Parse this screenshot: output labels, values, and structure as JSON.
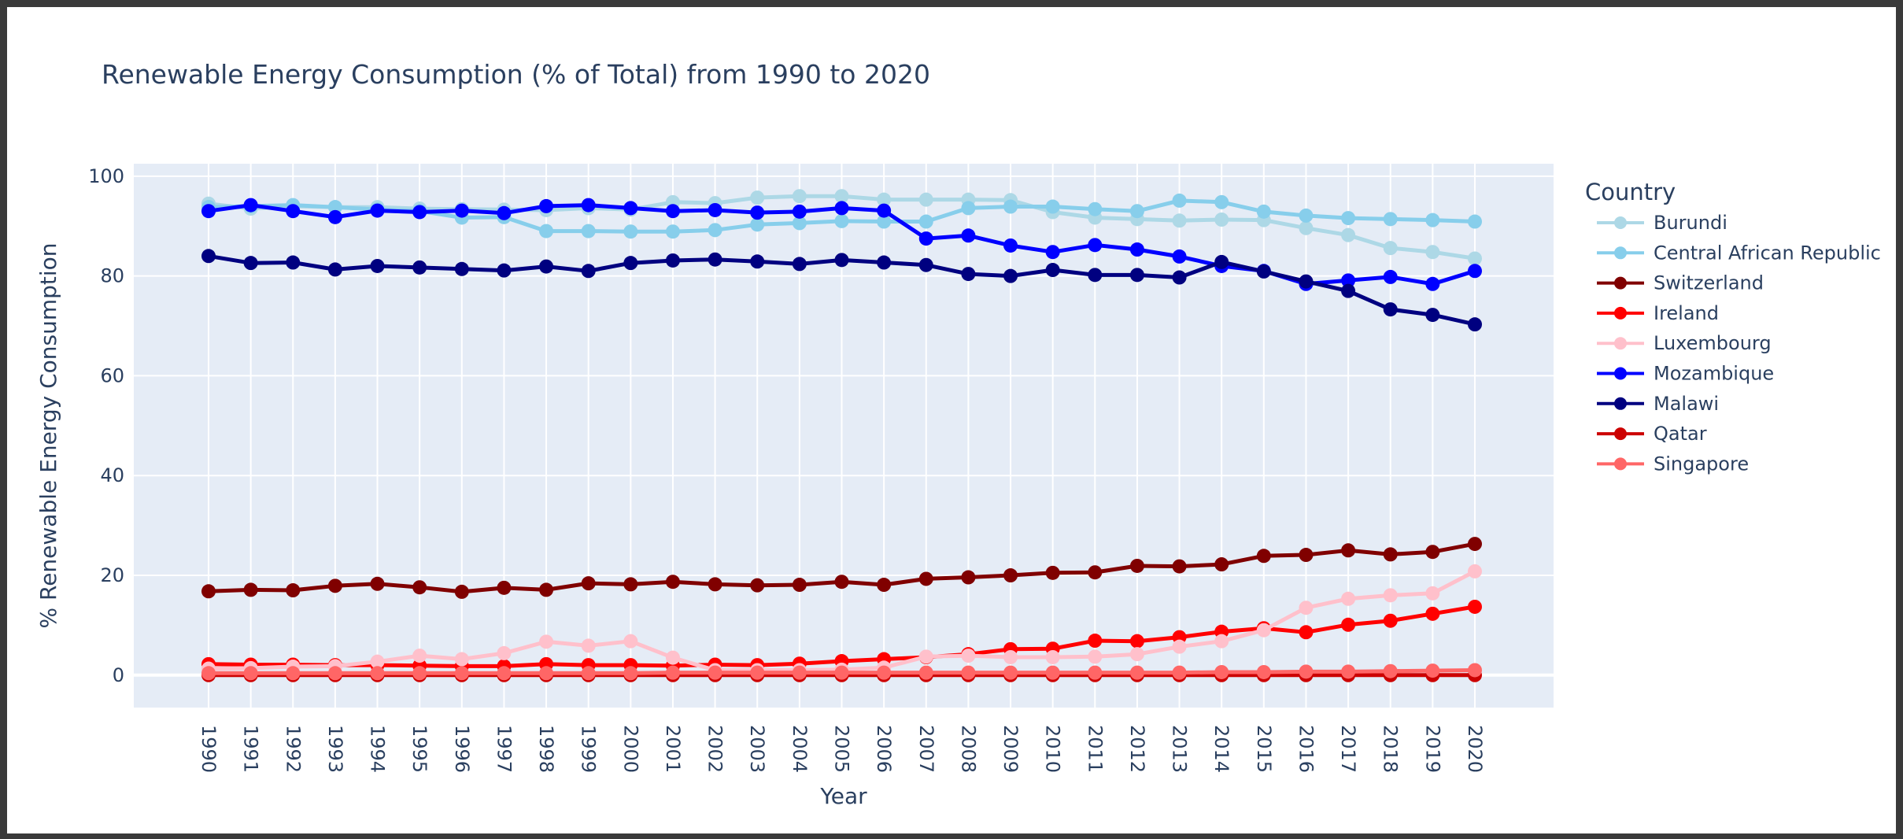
{
  "chart_data": {
    "type": "line",
    "title": "Renewable Energy Consumption (% of Total) from 1990 to 2020",
    "xlabel": "Year",
    "ylabel": "% Renewable Energy Consumption",
    "x": [
      1990,
      1991,
      1992,
      1993,
      1994,
      1995,
      1996,
      1997,
      1998,
      1999,
      2000,
      2001,
      2002,
      2003,
      2004,
      2005,
      2006,
      2007,
      2008,
      2009,
      2010,
      2011,
      2012,
      2013,
      2014,
      2015,
      2016,
      2017,
      2018,
      2019,
      2020
    ],
    "xtick_labels": [
      "1990",
      "1991",
      "1992",
      "1993",
      "1994",
      "1995",
      "1996",
      "1997",
      "1998",
      "1999",
      "2000",
      "2001",
      "2002",
      "2003",
      "2004",
      "2005",
      "2006",
      "2007",
      "2008",
      "2009",
      "2010",
      "2011",
      "2012",
      "2013",
      "2014",
      "2015",
      "2016",
      "2017",
      "2018",
      "2019",
      "2020"
    ],
    "ylim": [
      -6.5,
      102.5
    ],
    "yticks": [
      0,
      20,
      40,
      60,
      80,
      100
    ],
    "ytick_labels": [
      "0",
      "20",
      "40",
      "60",
      "80",
      "100"
    ],
    "grid": true,
    "legend": {
      "title": "Country",
      "placement": "right"
    },
    "series": [
      {
        "name": "Burundi",
        "color": "#ADD8E6",
        "values": [
          94.5,
          93.5,
          94.0,
          93.8,
          93.8,
          93.5,
          93.4,
          93.3,
          93.2,
          93.6,
          93.3,
          94.8,
          94.6,
          95.7,
          96.0,
          96.0,
          95.3,
          95.3,
          95.3,
          95.2,
          92.8,
          91.7,
          91.4,
          91.1,
          91.3,
          91.2,
          89.6,
          88.2,
          85.6,
          84.8,
          83.5
        ]
      },
      {
        "name": "Central African Republic",
        "color": "#87CEEB",
        "values": [
          93.8,
          94.0,
          94.2,
          93.8,
          93.3,
          93.0,
          91.7,
          91.8,
          89.0,
          89.0,
          88.9,
          88.9,
          89.2,
          90.3,
          90.6,
          91.0,
          90.9,
          90.9,
          93.6,
          93.9,
          93.9,
          93.4,
          93.0,
          95.1,
          94.8,
          92.9,
          92.1,
          91.6,
          91.4,
          91.2,
          90.9
        ]
      },
      {
        "name": "Switzerland",
        "color": "#800000",
        "values": [
          16.8,
          17.1,
          17.0,
          17.9,
          18.3,
          17.6,
          16.7,
          17.5,
          17.1,
          18.4,
          18.2,
          18.7,
          18.2,
          18.0,
          18.1,
          18.7,
          18.1,
          19.3,
          19.6,
          20.0,
          20.5,
          20.6,
          21.9,
          21.8,
          22.2,
          23.9,
          24.1,
          25.0,
          24.2,
          24.7,
          26.3
        ]
      },
      {
        "name": "Ireland",
        "color": "#FF0000",
        "values": [
          2.2,
          2.1,
          2.1,
          2.0,
          2.0,
          1.9,
          1.8,
          1.8,
          2.2,
          2.0,
          2.0,
          1.9,
          2.1,
          2.0,
          2.3,
          2.8,
          3.2,
          3.6,
          4.2,
          5.2,
          5.3,
          6.9,
          6.8,
          7.6,
          8.7,
          9.4,
          8.6,
          10.1,
          10.9,
          12.3,
          13.7
        ]
      },
      {
        "name": "Luxembourg",
        "color": "#FFC0CB",
        "values": [
          1.3,
          1.4,
          1.7,
          1.8,
          2.7,
          3.9,
          3.2,
          4.4,
          6.7,
          5.9,
          6.8,
          3.5,
          1.0,
          1.0,
          1.0,
          1.1,
          1.5,
          3.7,
          3.9,
          3.6,
          3.6,
          3.7,
          4.2,
          5.7,
          6.8,
          9.0,
          13.5,
          15.3,
          16.0,
          16.4,
          20.8
        ]
      },
      {
        "name": "Mozambique",
        "color": "#0000FF",
        "values": [
          93.0,
          94.2,
          93.0,
          91.8,
          93.1,
          92.8,
          93.1,
          92.6,
          94.0,
          94.2,
          93.6,
          93.0,
          93.2,
          92.7,
          92.9,
          93.6,
          93.1,
          87.5,
          88.1,
          86.1,
          84.8,
          86.2,
          85.3,
          83.9,
          82.0,
          81.0,
          78.4,
          79.1,
          79.8,
          78.4,
          81.0
        ]
      },
      {
        "name": "Malawi",
        "color": "#000080",
        "values": [
          84.0,
          82.6,
          82.7,
          81.3,
          82.0,
          81.7,
          81.4,
          81.1,
          81.9,
          81.0,
          82.6,
          83.1,
          83.3,
          82.9,
          82.4,
          83.2,
          82.7,
          82.2,
          80.4,
          80.0,
          81.2,
          80.2,
          80.2,
          79.7,
          82.8,
          80.9,
          78.9,
          77.0,
          73.3,
          72.2,
          70.3
        ]
      },
      {
        "name": "Qatar",
        "color": "#CC0000",
        "values": [
          0.0,
          0.0,
          0.0,
          0.0,
          0.0,
          0.0,
          0.0,
          0.0,
          0.0,
          0.0,
          0.0,
          0.0,
          0.0,
          0.0,
          0.0,
          0.0,
          0.0,
          0.0,
          0.0,
          0.0,
          0.0,
          0.0,
          0.0,
          0.0,
          0.0,
          0.0,
          0.0,
          0.0,
          0.0,
          0.0,
          0.0
        ]
      },
      {
        "name": "Singapore",
        "color": "#FF6666",
        "values": [
          0.4,
          0.4,
          0.4,
          0.4,
          0.4,
          0.4,
          0.4,
          0.4,
          0.4,
          0.4,
          0.4,
          0.5,
          0.5,
          0.5,
          0.5,
          0.5,
          0.5,
          0.5,
          0.5,
          0.5,
          0.5,
          0.5,
          0.5,
          0.5,
          0.6,
          0.6,
          0.7,
          0.7,
          0.8,
          0.9,
          1.0
        ]
      }
    ]
  }
}
